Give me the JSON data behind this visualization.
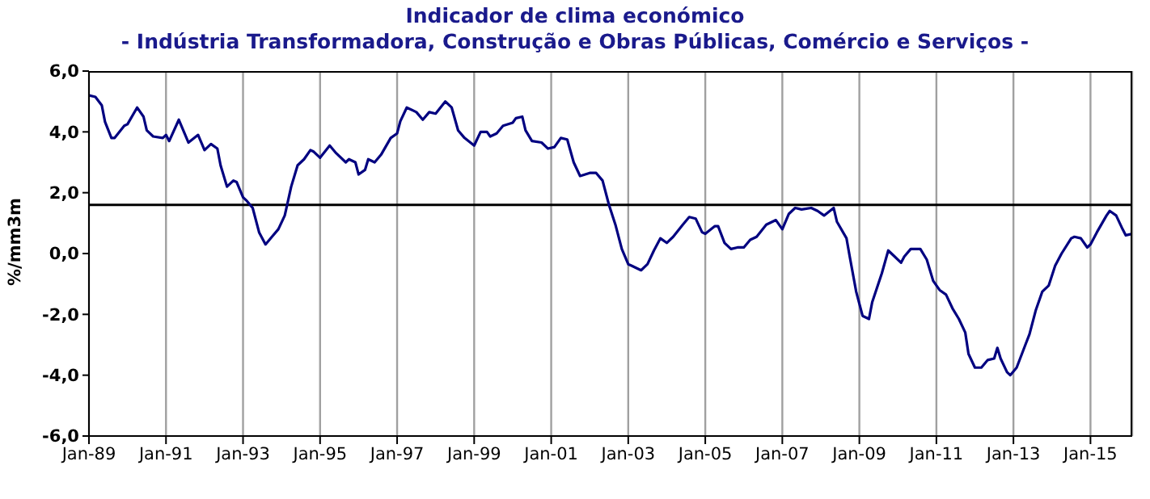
{
  "chart_data": {
    "type": "line",
    "title": "Indicador de clima económico",
    "subtitle": "- Indústria Transformadora, Construção e Obras Públicas, Comércio e Serviços -",
    "ylabel": "%/mm3m",
    "x": [
      "1989-01",
      "1989-03",
      "1989-05",
      "1989-06",
      "1989-08",
      "1989-09",
      "1989-12",
      "1990-01",
      "1990-04",
      "1990-06",
      "1990-07",
      "1990-09",
      "1990-12",
      "1991-01",
      "1991-02",
      "1991-05",
      "1991-08",
      "1991-11",
      "1992-01",
      "1992-03",
      "1992-05",
      "1992-06",
      "1992-08",
      "1992-10",
      "1992-11",
      "1993-01",
      "1993-02",
      "1993-04",
      "1993-06",
      "1993-08",
      "1993-10",
      "1993-12",
      "1994-02",
      "1994-04",
      "1994-06",
      "1994-08",
      "1994-10",
      "1994-11",
      "1995-01",
      "1995-04",
      "1995-06",
      "1995-09",
      "1995-10",
      "1995-12",
      "1996-01",
      "1996-03",
      "1996-04",
      "1996-06",
      "1996-08",
      "1996-11",
      "1997-01",
      "1997-02",
      "1997-04",
      "1997-07",
      "1997-09",
      "1997-11",
      "1998-01",
      "1998-04",
      "1998-06",
      "1998-08",
      "1998-10",
      "1999-01",
      "1999-03",
      "1999-05",
      "1999-06",
      "1999-08",
      "1999-10",
      "2000-01",
      "2000-02",
      "2000-04",
      "2000-05",
      "2000-07",
      "2000-10",
      "2000-12",
      "2001-02",
      "2001-04",
      "2001-06",
      "2001-08",
      "2001-10",
      "2002-01",
      "2002-03",
      "2002-05",
      "2002-07",
      "2002-09",
      "2002-11",
      "2003-01",
      "2003-02",
      "2003-05",
      "2003-07",
      "2003-09",
      "2003-11",
      "2004-01",
      "2004-03",
      "2004-06",
      "2004-08",
      "2004-10",
      "2004-12",
      "2005-01",
      "2005-04",
      "2005-05",
      "2005-07",
      "2005-09",
      "2005-11",
      "2006-01",
      "2006-03",
      "2006-05",
      "2006-08",
      "2006-11",
      "2007-01",
      "2007-03",
      "2007-05",
      "2007-07",
      "2007-10",
      "2007-12",
      "2008-02",
      "2008-05",
      "2008-06",
      "2008-09",
      "2008-10",
      "2008-12",
      "2009-02",
      "2009-04",
      "2009-05",
      "2009-08",
      "2009-10",
      "2009-12",
      "2010-02",
      "2010-03",
      "2010-05",
      "2010-08",
      "2010-10",
      "2010-12",
      "2011-02",
      "2011-04",
      "2011-06",
      "2011-08",
      "2011-10",
      "2011-11",
      "2012-01",
      "2012-03",
      "2012-05",
      "2012-07",
      "2012-08",
      "2012-09",
      "2012-11",
      "2012-12",
      "2013-02",
      "2013-04",
      "2013-06",
      "2013-08",
      "2013-10",
      "2013-12",
      "2014-02",
      "2014-04",
      "2014-07",
      "2014-08",
      "2014-10",
      "2014-12",
      "2015-01",
      "2015-03",
      "2015-06",
      "2015-07",
      "2015-09",
      "2015-11",
      "2015-12",
      "2016-02"
    ],
    "values": [
      5.2,
      5.15,
      4.87,
      4.33,
      3.8,
      3.8,
      4.2,
      4.25,
      4.8,
      4.5,
      4.05,
      3.85,
      3.8,
      3.9,
      3.7,
      4.4,
      3.65,
      3.9,
      3.4,
      3.6,
      3.45,
      2.9,
      2.2,
      2.4,
      2.35,
      1.85,
      1.75,
      1.5,
      0.7,
      0.3,
      0.55,
      0.8,
      1.25,
      2.2,
      2.9,
      3.1,
      3.4,
      3.35,
      3.15,
      3.55,
      3.3,
      3.0,
      3.1,
      3.0,
      2.6,
      2.75,
      3.1,
      3.0,
      3.25,
      3.8,
      3.95,
      4.35,
      4.8,
      4.65,
      4.4,
      4.65,
      4.6,
      5.0,
      4.8,
      4.05,
      3.8,
      3.55,
      4.0,
      4.0,
      3.85,
      3.95,
      4.2,
      4.3,
      4.45,
      4.5,
      4.05,
      3.7,
      3.65,
      3.45,
      3.5,
      3.8,
      3.75,
      3.0,
      2.55,
      2.65,
      2.65,
      2.4,
      1.6,
      0.95,
      0.15,
      -0.35,
      -0.4,
      -0.55,
      -0.35,
      0.1,
      0.5,
      0.35,
      0.55,
      0.95,
      1.2,
      1.15,
      0.7,
      0.65,
      0.9,
      0.9,
      0.35,
      0.15,
      0.2,
      0.2,
      0.45,
      0.55,
      0.95,
      1.1,
      0.8,
      1.3,
      1.5,
      1.45,
      1.5,
      1.4,
      1.25,
      1.5,
      1.05,
      0.5,
      -0.1,
      -1.25,
      -2.05,
      -2.15,
      -1.6,
      -0.65,
      0.1,
      -0.1,
      -0.3,
      -0.1,
      0.15,
      0.15,
      -0.2,
      -0.9,
      -1.2,
      -1.35,
      -1.8,
      -2.15,
      -2.6,
      -3.3,
      -3.75,
      -3.75,
      -3.5,
      -3.45,
      -3.1,
      -3.45,
      -3.9,
      -4.0,
      -3.75,
      -3.2,
      -2.65,
      -1.85,
      -1.25,
      -1.05,
      -0.4,
      0.0,
      0.5,
      0.55,
      0.5,
      0.2,
      0.3,
      0.7,
      1.25,
      1.4,
      1.25,
      0.8,
      0.6,
      0.65
    ],
    "color": "#000080",
    "xlim": [
      "1989-01",
      "2016-02"
    ],
    "xticks": [
      {
        "value": "1989-01",
        "label": "Jan-89"
      },
      {
        "value": "1991-01",
        "label": "Jan-91"
      },
      {
        "value": "1993-01",
        "label": "Jan-93"
      },
      {
        "value": "1995-01",
        "label": "Jan-95"
      },
      {
        "value": "1997-01",
        "label": "Jan-97"
      },
      {
        "value": "1999-01",
        "label": "Jan-99"
      },
      {
        "value": "2001-01",
        "label": "Jan-01"
      },
      {
        "value": "2003-01",
        "label": "Jan-03"
      },
      {
        "value": "2005-01",
        "label": "Jan-05"
      },
      {
        "value": "2007-01",
        "label": "Jan-07"
      },
      {
        "value": "2009-01",
        "label": "Jan-09"
      },
      {
        "value": "2011-01",
        "label": "Jan-11"
      },
      {
        "value": "2013-01",
        "label": "Jan-13"
      },
      {
        "value": "2015-01",
        "label": "Jan-15"
      }
    ],
    "ylim": [
      -6,
      6
    ],
    "yticks": [
      {
        "value": -6,
        "label": "-6,0"
      },
      {
        "value": -4,
        "label": "-4,0"
      },
      {
        "value": -2,
        "label": "-2,0"
      },
      {
        "value": 0,
        "label": "0,0"
      },
      {
        "value": 2,
        "label": "2,0"
      },
      {
        "value": 4,
        "label": "4,0"
      },
      {
        "value": 6,
        "label": "6,0"
      }
    ],
    "grid": "x",
    "legend": false,
    "ref_lines": [
      {
        "axis": "y",
        "value": 1.6,
        "color": "#000000"
      }
    ]
  }
}
